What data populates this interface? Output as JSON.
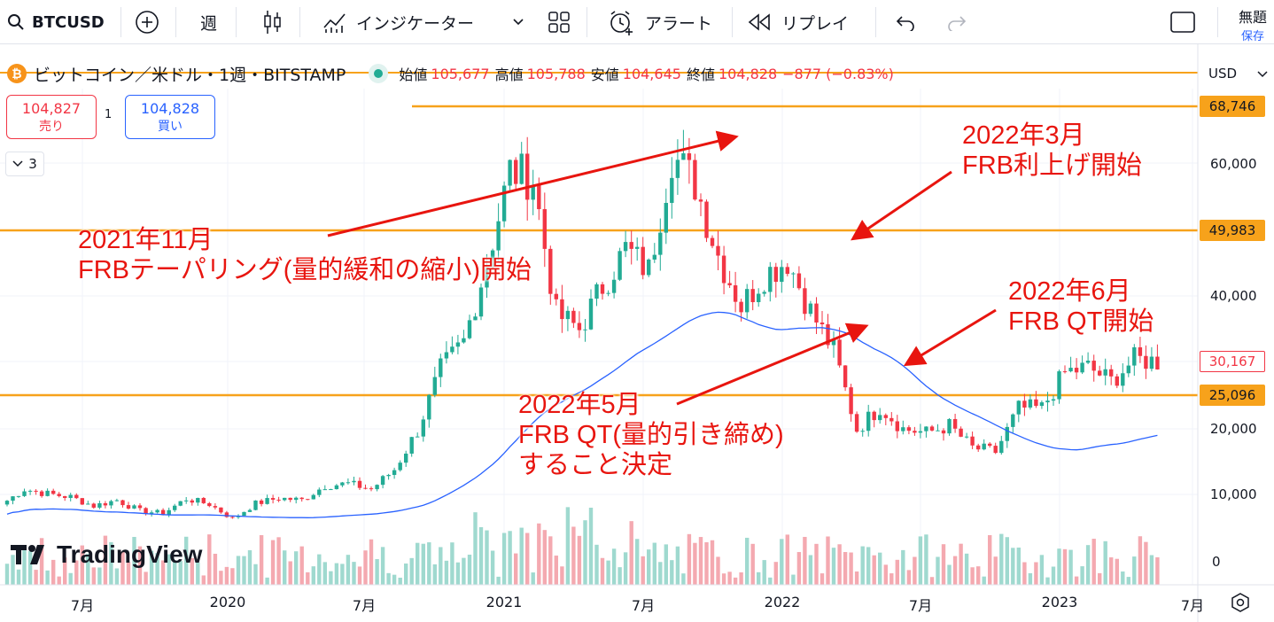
{
  "toolbar": {
    "symbol": "BTCUSD",
    "interval": "週",
    "indicators": "インジケーター",
    "alert": "アラート",
    "replay": "リプレイ",
    "layout_name": "無題",
    "save": "保存"
  },
  "legend": {
    "title": "ビットコイン／米ドル・1週・BITSTAMP",
    "open_label": "始値",
    "open": "105,677",
    "high_label": "高値",
    "high": "105,788",
    "low_label": "安値",
    "low": "104,645",
    "close_label": "終値",
    "close": "104,828",
    "change": "−877 (−0.83%)"
  },
  "trade": {
    "sell_price": "104,827",
    "sell_label": "売り",
    "buy_price": "104,828",
    "buy_label": "買い",
    "spread": "1",
    "collapse": "3"
  },
  "price_axis": {
    "currency": "USD",
    "ticks": [
      "60,000",
      "40,000",
      "20,000",
      "10,000",
      "0"
    ],
    "badge_high": "68,746",
    "badge_mid": "49,983",
    "badge_low": "25,096",
    "badge_last": "30,167"
  },
  "time_axis": [
    "7月",
    "2020",
    "7月",
    "2021",
    "7月",
    "2022",
    "7月",
    "2023",
    "7月"
  ],
  "annotations": {
    "a1_line1": "2021年11月",
    "a1_line2": "FRBテーパリング(量的緩和の縮小)開始",
    "a2_line1": "2022年3月",
    "a2_line2": "FRB利上げ開始",
    "a3_line1": "2022年6月",
    "a3_line2": "FRB QT開始",
    "a4_line1": "2022年5月",
    "a4_line2": "FRB QT(量的引き締め)",
    "a4_line3": "すること決定"
  },
  "watermark": "TradingView",
  "colors": {
    "up": "#22ab94",
    "down": "#f23645",
    "level_line": "#f7a21b",
    "ma": "#2962ff",
    "annotation": "#e8150f"
  },
  "chart_data": {
    "type": "candlestick",
    "timeframe": "1W",
    "ylim": [
      0,
      70000
    ],
    "horizontal_levels": [
      68746,
      49983,
      25096
    ],
    "monthly_close": [
      [
        "2019-05",
        8500
      ],
      [
        "2019-06",
        10800
      ],
      [
        "2019-07",
        10100
      ],
      [
        "2019-08",
        9600
      ],
      [
        "2019-09",
        8300
      ],
      [
        "2019-10",
        9150
      ],
      [
        "2019-11",
        7550
      ],
      [
        "2019-12",
        7200
      ],
      [
        "2020-01",
        9350
      ],
      [
        "2020-02",
        8550
      ],
      [
        "2020-03",
        6400
      ],
      [
        "2020-04",
        8650
      ],
      [
        "2020-05",
        9450
      ],
      [
        "2020-06",
        9150
      ],
      [
        "2020-07",
        11350
      ],
      [
        "2020-08",
        11650
      ],
      [
        "2020-09",
        10800
      ],
      [
        "2020-10",
        13800
      ],
      [
        "2020-11",
        19700
      ],
      [
        "2020-12",
        29000
      ],
      [
        "2021-01",
        33100
      ],
      [
        "2021-02",
        45200
      ],
      [
        "2021-03",
        58800
      ],
      [
        "2021-04",
        57700
      ],
      [
        "2021-05",
        37300
      ],
      [
        "2021-06",
        35000
      ],
      [
        "2021-07",
        41500
      ],
      [
        "2021-08",
        47100
      ],
      [
        "2021-09",
        43800
      ],
      [
        "2021-10",
        61300
      ],
      [
        "2021-11",
        57000
      ],
      [
        "2021-12",
        46200
      ],
      [
        "2022-01",
        38500
      ],
      [
        "2022-02",
        43200
      ],
      [
        "2022-03",
        45500
      ],
      [
        "2022-04",
        37700
      ],
      [
        "2022-05",
        31800
      ],
      [
        "2022-06",
        19900
      ],
      [
        "2022-07",
        23300
      ],
      [
        "2022-08",
        20000
      ],
      [
        "2022-09",
        19400
      ],
      [
        "2022-10",
        20500
      ],
      [
        "2022-11",
        17100
      ],
      [
        "2022-12",
        16500
      ],
      [
        "2023-01",
        23100
      ],
      [
        "2023-02",
        23100
      ],
      [
        "2023-03",
        28500
      ],
      [
        "2023-04",
        29300
      ],
      [
        "2023-05",
        27200
      ],
      [
        "2023-06",
        30500
      ],
      [
        "2023-07",
        30167
      ]
    ]
  }
}
